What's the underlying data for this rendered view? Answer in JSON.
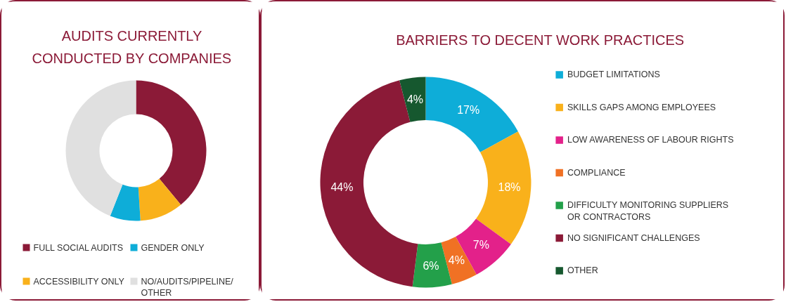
{
  "chart_data": [
    {
      "type": "donut",
      "title": "AUDITS CURRENTLY CONDUCTED BY COMPANIES",
      "categories": [
        "FULL SOCIAL AUDITS",
        "ACCESSIBILITY ONLY",
        "GENDER ONLY",
        "NO/AUDITS/PIPELINE/OTHER"
      ],
      "values": [
        39,
        10,
        7,
        44
      ],
      "colors": [
        "#8b1a37",
        "#f9b11b",
        "#0eadd8",
        "#e0e0e0"
      ],
      "legend": "bottom"
    },
    {
      "type": "donut",
      "title": "BARRIERS TO DECENT WORK PRACTICES",
      "categories": [
        "BUDGET LIMITATIONS",
        "SKILLS GAPS AMONG EMPLOYEES",
        "LOW AWARENESS OF LABOUR RIGHTS",
        "COMPLIANCE",
        "DIFFICULTY MONITORING SUPPLIERS OR CONTRACTORS",
        "NO SIGNIFICANT CHALLENGES",
        "OTHER"
      ],
      "values": [
        17,
        18,
        7,
        4,
        6,
        44,
        4
      ],
      "value_labels": [
        "17%",
        "18%",
        "7%",
        "4%",
        "6%",
        "44%",
        "4%"
      ],
      "colors": [
        "#0eadd8",
        "#f9b11b",
        "#e3218a",
        "#f07124",
        "#23a04a",
        "#8b1a37",
        "#16582f"
      ],
      "legend": "right"
    }
  ]
}
